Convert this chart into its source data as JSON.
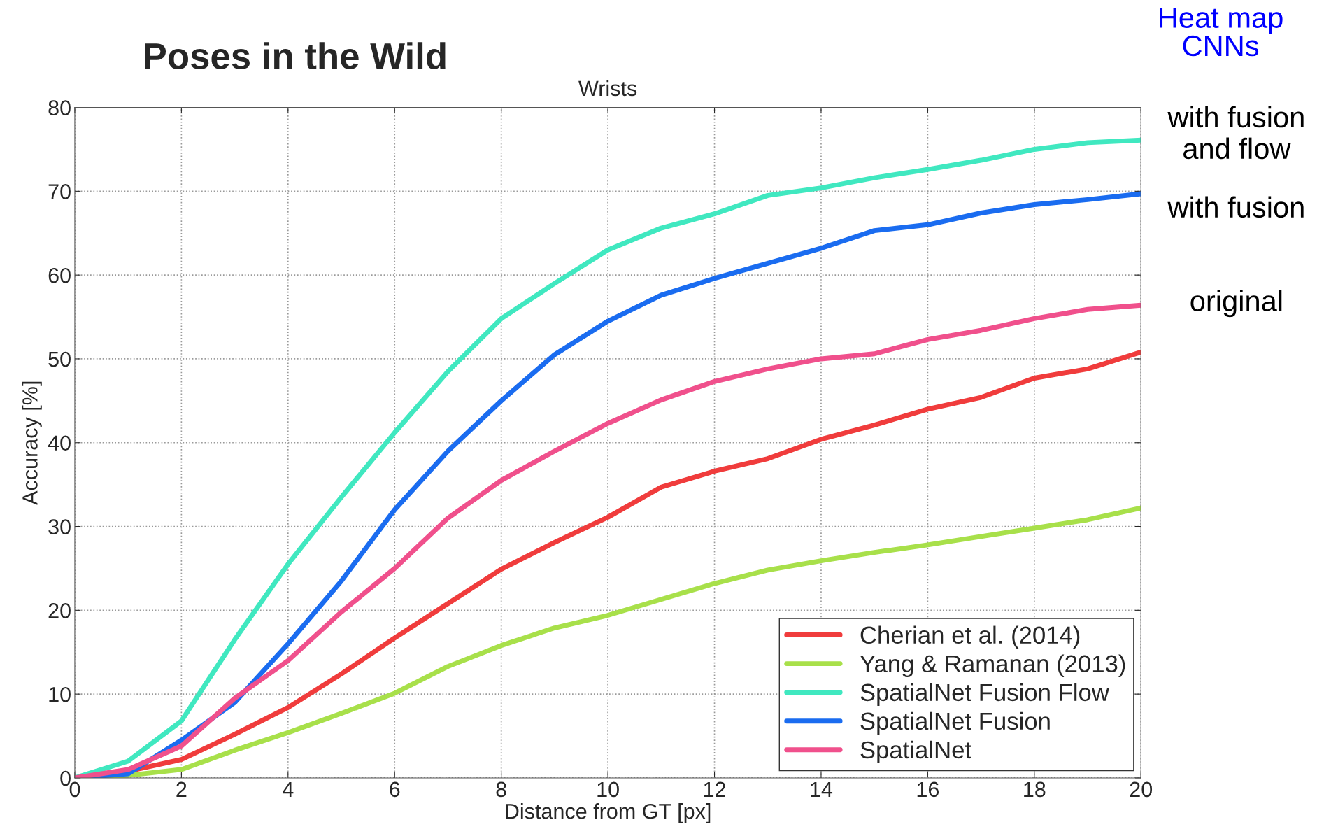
{
  "chart_data": {
    "type": "line",
    "title": "Poses in the Wild",
    "subtitle": "Wrists",
    "xlabel": "Distance from GT [px]",
    "ylabel": "Accuracy [%]",
    "x": [
      0,
      1,
      2,
      3,
      4,
      5,
      6,
      7,
      8,
      9,
      10,
      11,
      12,
      13,
      14,
      15,
      16,
      17,
      18,
      19,
      20
    ],
    "xlim": [
      0,
      20
    ],
    "xticks": [
      0,
      2,
      4,
      6,
      8,
      10,
      12,
      14,
      16,
      18,
      20
    ],
    "ylim": [
      0,
      80
    ],
    "yticks": [
      0,
      10,
      20,
      30,
      40,
      50,
      60,
      70,
      80
    ],
    "grid": true,
    "legend": "bottom right",
    "line_style": "solid",
    "marker": "none",
    "series": [
      {
        "name": "Cherian et al. (2014)",
        "color": "#f03c3c",
        "values": [
          0,
          0.8,
          2.2,
          5.2,
          8.4,
          12.4,
          16.7,
          20.8,
          24.9,
          28.1,
          31.1,
          34.7,
          36.6,
          38.1,
          40.4,
          42.1,
          44,
          45.4,
          47.7,
          48.8,
          50.8
        ]
      },
      {
        "name": "Yang & Ramanan (2013)",
        "color": "#a8e04a",
        "values": [
          0,
          0.3,
          1,
          3.3,
          5.4,
          7.7,
          10.1,
          13.3,
          15.8,
          17.9,
          19.4,
          21.3,
          23.2,
          24.8,
          25.9,
          26.9,
          27.8,
          28.8,
          29.8,
          30.8,
          32.2
        ]
      },
      {
        "name": "SpatialNet Fusion Flow",
        "color": "#40e8c0",
        "values": [
          0,
          2,
          6.8,
          16.5,
          25.5,
          33.5,
          41.2,
          48.5,
          54.8,
          59,
          63,
          65.6,
          67.3,
          69.5,
          70.4,
          71.6,
          72.6,
          73.7,
          75,
          75.8,
          76.1
        ]
      },
      {
        "name": "SpatialNet Fusion",
        "color": "#1a6cf0",
        "values": [
          0,
          0.5,
          4.5,
          9,
          16,
          23.5,
          32,
          39,
          45,
          50.5,
          54.5,
          57.6,
          59.6,
          61.4,
          63.2,
          65.3,
          66,
          67.4,
          68.4,
          69,
          69.7
        ]
      },
      {
        "name": "SpatialNet",
        "color": "#f0508c",
        "values": [
          0,
          1,
          3.8,
          9.5,
          14,
          19.8,
          25,
          31,
          35.5,
          39,
          42.3,
          45.1,
          47.3,
          48.8,
          50,
          50.6,
          52.3,
          53.4,
          54.8,
          55.9,
          56.4
        ]
      }
    ],
    "annotations": [
      "Heat map\nCNNs",
      "with fusion\nand flow",
      "with fusion",
      "original"
    ]
  }
}
